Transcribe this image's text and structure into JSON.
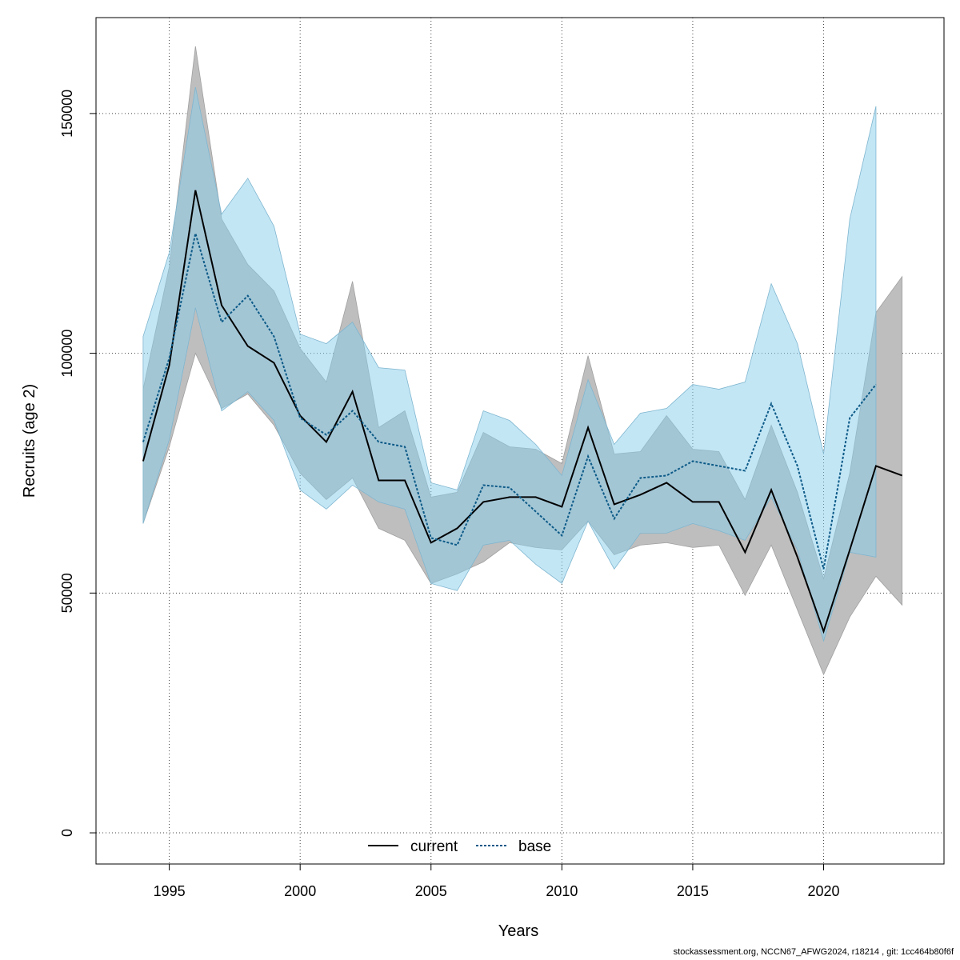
{
  "chart_data": {
    "type": "line",
    "title": "",
    "xlabel": "Years",
    "ylabel": "Recruits (age 2)",
    "xlim": [
      1992.2,
      2024.6
    ],
    "ylim": [
      -6500,
      170000
    ],
    "x_ticks": [
      1995,
      2000,
      2005,
      2010,
      2015,
      2020
    ],
    "y_ticks": [
      0,
      50000,
      100000,
      150000
    ],
    "grid": true,
    "legend_position": "bottom-center",
    "series": [
      {
        "name": "current",
        "line_style": "solid",
        "line_color": "#000000",
        "band_color": "#bebebe",
        "x": [
          1994,
          1995,
          1996,
          1997,
          1998,
          1999,
          2000,
          2001,
          2002,
          2003,
          2004,
          2005,
          2006,
          2007,
          2008,
          2009,
          2010,
          2011,
          2012,
          2013,
          2014,
          2015,
          2016,
          2017,
          2018,
          2019,
          2020,
          2021,
          2022,
          2023
        ],
        "values": [
          77500,
          97500,
          134000,
          110000,
          101500,
          98000,
          87000,
          81500,
          92000,
          73500,
          73500,
          60500,
          63500,
          69000,
          70000,
          70000,
          68000,
          84500,
          68500,
          70500,
          73000,
          69000,
          69000,
          58500,
          71500,
          57500,
          42000,
          59000,
          76500,
          74500
        ],
        "lower": [
          64500,
          80500,
          100000,
          88500,
          91500,
          85000,
          75000,
          69500,
          74000,
          63500,
          61000,
          52000,
          54000,
          56500,
          60500,
          59500,
          59000,
          65000,
          58000,
          60000,
          60500,
          59500,
          60000,
          49500,
          60000,
          46500,
          33000,
          45000,
          53500,
          47500
        ],
        "upper": [
          92500,
          118000,
          164000,
          128000,
          118500,
          113000,
          101000,
          94000,
          115000,
          84500,
          88000,
          70000,
          71000,
          83500,
          80500,
          80000,
          77000,
          99500,
          79000,
          79500,
          87000,
          80000,
          79500,
          69500,
          85000,
          71000,
          53000,
          75000,
          108500,
          116000
        ]
      },
      {
        "name": "base",
        "line_style": "dotted",
        "line_color": "#0c5a87",
        "band_color": "#87ceeb",
        "x": [
          1994,
          1995,
          1996,
          1997,
          1998,
          1999,
          2000,
          2001,
          2002,
          2003,
          2004,
          2005,
          2006,
          2007,
          2008,
          2009,
          2010,
          2011,
          2012,
          2013,
          2014,
          2015,
          2016,
          2017,
          2018,
          2019,
          2020,
          2021,
          2022
        ],
        "values": [
          81500,
          99000,
          125000,
          106500,
          112000,
          103500,
          86500,
          83000,
          88000,
          81500,
          80500,
          61500,
          60000,
          72500,
          72000,
          67000,
          62000,
          78500,
          65500,
          74000,
          74500,
          77500,
          76500,
          75500,
          89500,
          76500,
          55000,
          86500,
          93500
        ],
        "lower": [
          64500,
          82000,
          109500,
          88000,
          92000,
          86000,
          71500,
          67500,
          72500,
          69000,
          67500,
          52000,
          50500,
          60000,
          61000,
          56000,
          52000,
          65000,
          55000,
          62500,
          62500,
          64500,
          63000,
          61000,
          70000,
          59000,
          40000,
          58500,
          57500
        ],
        "upper": [
          103500,
          121000,
          155500,
          129000,
          136500,
          126500,
          104000,
          102000,
          106500,
          97000,
          96500,
          73000,
          71500,
          88000,
          86000,
          81000,
          74500,
          94500,
          81000,
          87500,
          88500,
          93500,
          92500,
          94000,
          114500,
          102000,
          79000,
          128000,
          151500
        ]
      }
    ],
    "footer": "stockassessment.org, NCCN67_AFWG2024, r18214 , git: 1cc464b80f6f"
  }
}
